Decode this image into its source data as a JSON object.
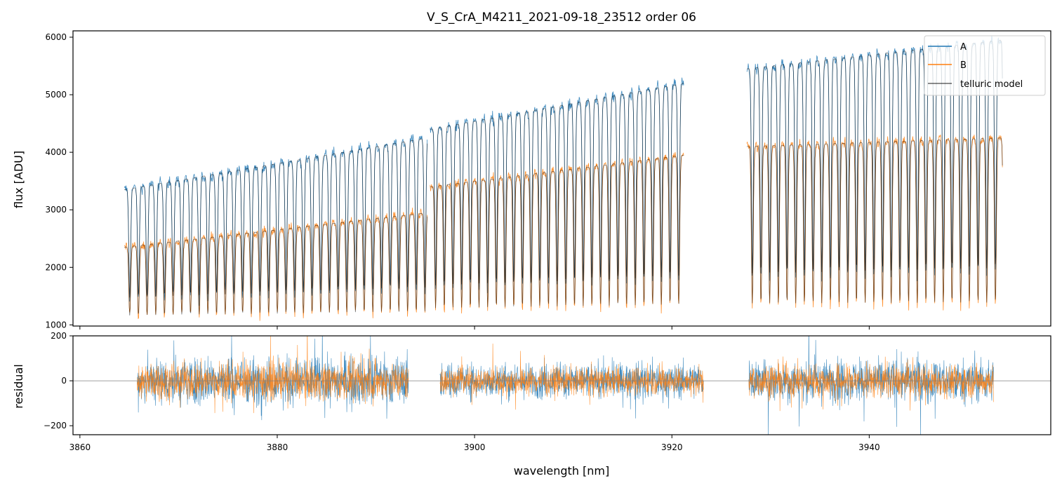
{
  "colors": {
    "A": "#1f77b4",
    "B": "#ff7f0e",
    "model": "#000000",
    "zero_line": "#808080"
  },
  "chart_data": [
    {
      "panel": "top",
      "type": "line",
      "title": "V_S_CrA_M4211_2021-09-18_23512  order 06",
      "xlabel": "",
      "ylabel": "flux [ADU]",
      "xlim": [
        3859.3,
        3958.4
      ],
      "ylim": [
        980,
        6110
      ],
      "xticks": [
        3860,
        3880,
        3900,
        3920,
        3940
      ],
      "yticks": [
        1000,
        2000,
        3000,
        4000,
        5000,
        6000
      ],
      "ytick_labels": [
        "1000",
        "2000",
        "3000",
        "4000",
        "5000",
        "6000"
      ],
      "legend": {
        "placement": "top-right",
        "entries": [
          "A",
          "B",
          "telluric model"
        ]
      },
      "segments": [
        {
          "x_range": [
            3864.5,
            3895.2
          ],
          "A_continuum_y": [
            3350,
            4250
          ],
          "B_continuum_y": [
            2350,
            2950
          ]
        },
        {
          "x_range": [
            3895.5,
            3921.2
          ],
          "A_continuum_y": [
            4400,
            5200
          ],
          "B_continuum_y": [
            3400,
            3950
          ]
        },
        {
          "x_range": [
            3927.6,
            3953.5
          ],
          "A_continuum_y": [
            5450,
            5950
          ],
          "B_continuum_y": [
            4100,
            4250
          ]
        }
      ],
      "line_spacing_nm": 0.88,
      "series": [
        {
          "name": "A",
          "approx_range": [
            1000,
            6100
          ]
        },
        {
          "name": "B",
          "approx_range": [
            1000,
            4400
          ]
        },
        {
          "name": "telluric model",
          "approx_range": [
            1000,
            5950
          ]
        }
      ]
    },
    {
      "panel": "bottom",
      "type": "line",
      "xlabel": "wavelength [nm]",
      "ylabel": "residual",
      "xlim": [
        3859.3,
        3958.4
      ],
      "ylim": [
        -240,
        200
      ],
      "xticks": [
        3860,
        3880,
        3900,
        3920,
        3940
      ],
      "xtick_labels": [
        "3860",
        "3880",
        "3900",
        "3920",
        "3940"
      ],
      "yticks": [
        -200,
        0,
        200
      ],
      "ytick_labels": [
        "−200",
        "0",
        "200"
      ],
      "zero_line": 0,
      "segments": [
        {
          "x_range": [
            3865.8,
            3893.3
          ],
          "A_amplitude": 95,
          "B_amplitude": 75
        },
        {
          "x_range": [
            3896.5,
            3923.2
          ],
          "A_amplitude": 70,
          "B_amplitude": 55
        },
        {
          "x_range": [
            3927.8,
            3952.6
          ],
          "A_amplitude": 85,
          "B_amplitude": 65
        }
      ],
      "series": [
        {
          "name": "A",
          "approx_range": [
            -240,
            200
          ]
        },
        {
          "name": "B",
          "approx_range": [
            -240,
            200
          ]
        }
      ]
    }
  ]
}
